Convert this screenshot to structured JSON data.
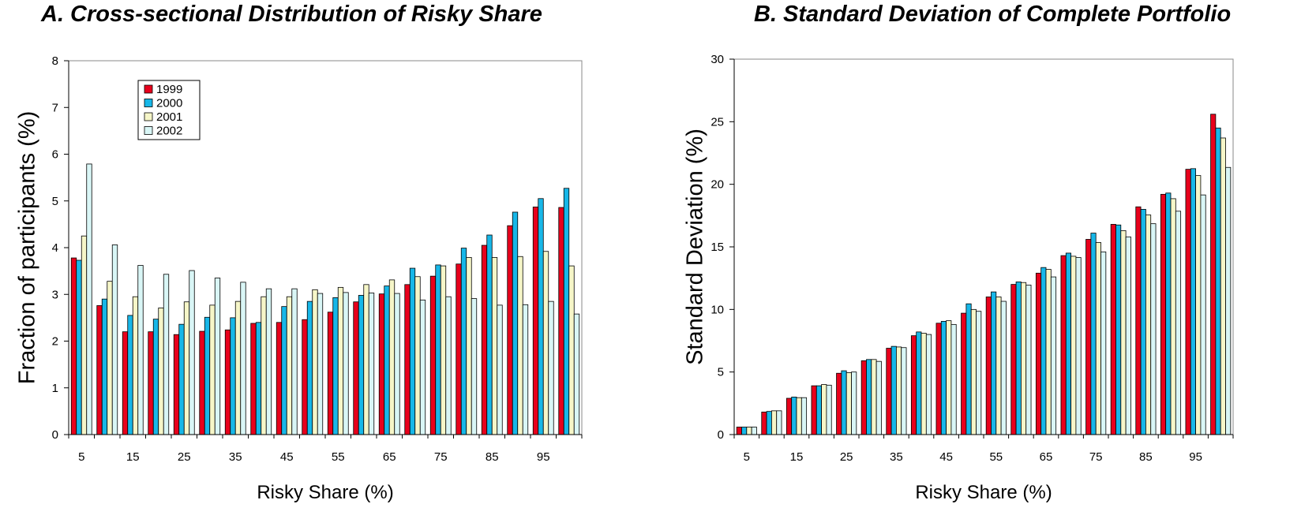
{
  "chart_data": [
    {
      "type": "bar",
      "title": "A. Cross-sectional Distribution of Risky Share",
      "xlabel": "Risky Share (%)",
      "ylabel": "Fraction of participants (%)",
      "ylim": [
        0,
        8
      ],
      "yticks": [
        "0",
        "1",
        "2",
        "3",
        "4",
        "5",
        "6",
        "7",
        "8"
      ],
      "categories": [
        "5",
        "10",
        "15",
        "20",
        "25",
        "30",
        "35",
        "40",
        "45",
        "50",
        "55",
        "60",
        "65",
        "70",
        "75",
        "80",
        "85",
        "90",
        "95",
        "100"
      ],
      "xtick_labels": [
        "5",
        "15",
        "25",
        "35",
        "45",
        "55",
        "65",
        "75",
        "85",
        "95"
      ],
      "legend_position": "top-left",
      "grid": false,
      "series": [
        {
          "name": "1999",
          "color": "#e8001c",
          "values": [
            3.78,
            2.76,
            2.2,
            2.2,
            2.14,
            2.21,
            2.24,
            2.38,
            2.4,
            2.46,
            2.62,
            2.84,
            3.01,
            3.21,
            3.39,
            3.65,
            4.05,
            4.47,
            4.87,
            4.86
          ]
        },
        {
          "name": "2000",
          "color": "#17b7e8",
          "values": [
            3.73,
            2.9,
            2.55,
            2.47,
            2.36,
            2.51,
            2.5,
            2.4,
            2.74,
            2.85,
            2.93,
            2.98,
            3.18,
            3.56,
            3.63,
            3.99,
            4.27,
            4.76,
            5.05,
            5.27
          ]
        },
        {
          "name": "2001",
          "color": "#f6f6c8",
          "values": [
            4.25,
            3.28,
            2.95,
            2.71,
            2.84,
            2.77,
            2.85,
            2.95,
            2.95,
            3.1,
            3.15,
            3.21,
            3.31,
            3.38,
            3.61,
            3.79,
            3.79,
            3.81,
            3.92,
            3.61
          ]
        },
        {
          "name": "2002",
          "color": "#d9f6f6",
          "values": [
            5.79,
            4.06,
            3.62,
            3.43,
            3.51,
            3.35,
            3.26,
            3.12,
            3.12,
            3.02,
            3.04,
            3.03,
            3.02,
            2.88,
            2.95,
            2.91,
            2.77,
            2.78,
            2.85,
            2.58
          ]
        }
      ]
    },
    {
      "type": "bar",
      "title": "B. Standard Deviation of Complete Portfolio",
      "xlabel": "Risky Share (%)",
      "ylabel": "Standard Deviation (%)",
      "ylim": [
        0,
        30
      ],
      "yticks": [
        "0",
        "5",
        "10",
        "15",
        "20",
        "25",
        "30"
      ],
      "categories": [
        "5",
        "10",
        "15",
        "20",
        "25",
        "30",
        "35",
        "40",
        "45",
        "50",
        "55",
        "60",
        "65",
        "70",
        "75",
        "80",
        "85",
        "90",
        "95",
        "100"
      ],
      "xtick_labels": [
        "5",
        "15",
        "25",
        "35",
        "45",
        "55",
        "65",
        "75",
        "85",
        "95"
      ],
      "grid": false,
      "series": [
        {
          "name": "1999",
          "color": "#e8001c",
          "values": [
            0.6,
            1.8,
            2.9,
            3.9,
            4.9,
            5.9,
            6.9,
            7.9,
            8.9,
            9.7,
            11.0,
            12.0,
            12.9,
            14.3,
            15.6,
            16.8,
            18.2,
            19.2,
            21.2,
            25.6
          ]
        },
        {
          "name": "2000",
          "color": "#17b7e8",
          "values": [
            0.6,
            1.85,
            3.0,
            3.9,
            5.1,
            6.0,
            7.05,
            8.2,
            9.05,
            10.45,
            11.4,
            12.2,
            13.35,
            14.5,
            16.1,
            16.75,
            18.0,
            19.3,
            21.25,
            24.5
          ]
        },
        {
          "name": "2001",
          "color": "#f6f6c8",
          "values": [
            0.6,
            1.9,
            2.95,
            4.0,
            4.95,
            6.0,
            7.0,
            8.1,
            9.1,
            10.0,
            11.0,
            12.15,
            13.2,
            14.25,
            15.35,
            16.3,
            17.55,
            18.85,
            20.7,
            23.7
          ]
        },
        {
          "name": "2002",
          "color": "#d9f6f6",
          "values": [
            0.6,
            1.9,
            2.95,
            3.95,
            5.0,
            5.85,
            6.95,
            8.0,
            8.8,
            9.85,
            10.65,
            11.95,
            12.6,
            14.15,
            14.6,
            15.8,
            16.85,
            17.85,
            19.15,
            21.35
          ]
        }
      ]
    }
  ]
}
